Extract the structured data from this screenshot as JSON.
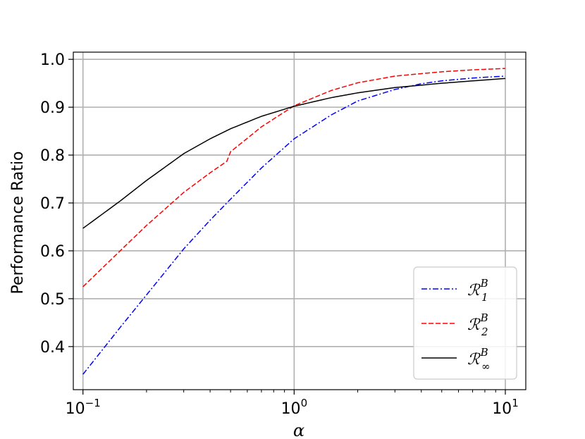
{
  "chart_data": {
    "type": "line",
    "xscale": "log",
    "xlim": [
      0.09,
      12.5
    ],
    "ylim": [
      0.31,
      1.015
    ],
    "xlabel": "α",
    "ylabel": "Performance Ratio",
    "grid": true,
    "legend_position": "lower-right",
    "x_ticks": [
      {
        "value": 0.1,
        "base": "10",
        "exp": "−1"
      },
      {
        "value": 1,
        "base": "10",
        "exp": "0"
      },
      {
        "value": 10,
        "base": "10",
        "exp": "1"
      }
    ],
    "y_ticks": [
      0.4,
      0.5,
      0.6,
      0.7,
      0.8,
      0.9,
      1.0
    ],
    "y_tick_labels": [
      "0.4",
      "0.5",
      "0.6",
      "0.7",
      "0.8",
      "0.9",
      "1.0"
    ],
    "series": [
      {
        "name": "ℛ₁ᴮ",
        "legend_main": "ℛ",
        "legend_sub": "1",
        "legend_sup": "B",
        "color": "#0000ff",
        "dash": "dashdot",
        "x": [
          0.1,
          0.15,
          0.2,
          0.3,
          0.4,
          0.5,
          0.7,
          1.0,
          1.5,
          2.0,
          3.0,
          4.0,
          5.0,
          7.0,
          10.0
        ],
        "y": [
          0.342,
          0.44,
          0.508,
          0.604,
          0.664,
          0.708,
          0.773,
          0.834,
          0.884,
          0.913,
          0.937,
          0.949,
          0.955,
          0.961,
          0.965
        ]
      },
      {
        "name": "ℛ₂ᴮ",
        "legend_main": "ℛ",
        "legend_sub": "2",
        "legend_sup": "B",
        "color": "#ff0000",
        "dash": "dashed",
        "x": [
          0.1,
          0.15,
          0.2,
          0.3,
          0.4,
          0.48,
          0.5,
          0.6,
          0.7,
          1.0,
          1.5,
          2.0,
          3.0,
          5.0,
          7.0,
          10.0
        ],
        "y": [
          0.525,
          0.6,
          0.653,
          0.722,
          0.763,
          0.787,
          0.807,
          0.835,
          0.859,
          0.903,
          0.935,
          0.951,
          0.965,
          0.974,
          0.978,
          0.981
        ]
      },
      {
        "name": "ℛ∞ᴮ",
        "legend_main": "ℛ",
        "legend_sub": "∞",
        "legend_sup": "B",
        "color": "#000000",
        "dash": "solid",
        "x": [
          0.1,
          0.15,
          0.2,
          0.3,
          0.4,
          0.5,
          0.7,
          1.0,
          1.5,
          2.0,
          3.0,
          5.0,
          7.0,
          10.0
        ],
        "y": [
          0.647,
          0.704,
          0.747,
          0.803,
          0.834,
          0.855,
          0.881,
          0.902,
          0.92,
          0.93,
          0.941,
          0.95,
          0.955,
          0.96
        ]
      }
    ]
  }
}
